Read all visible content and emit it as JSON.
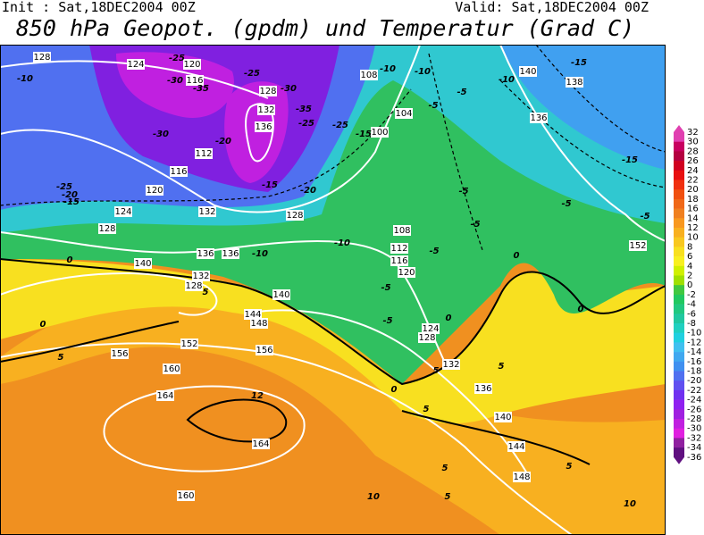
{
  "header": {
    "init": "Init : Sat,18DEC2004 00Z",
    "valid": "Valid: Sat,18DEC2004 00Z",
    "title": "850 hPa Geopot. (gpdm) und Temperatur (Grad C)"
  },
  "colorbar": {
    "levels": [
      32,
      30,
      28,
      26,
      24,
      22,
      20,
      18,
      16,
      14,
      12,
      10,
      8,
      6,
      4,
      2,
      0,
      -2,
      -4,
      -6,
      -8,
      -10,
      -12,
      -14,
      -16,
      -18,
      -20,
      -22,
      -24,
      -26,
      -28,
      -30,
      -32,
      -34,
      -36
    ],
    "colors": [
      "#e040b0",
      "#c80060",
      "#b40040",
      "#d00020",
      "#e81010",
      "#f03010",
      "#f05010",
      "#f06818",
      "#f08020",
      "#f89820",
      "#f8b020",
      "#f8c820",
      "#f8e020",
      "#f8f020",
      "#d0f000",
      "#a0e000",
      "#40c840",
      "#20c860",
      "#20c880",
      "#20c8a0",
      "#20d0c0",
      "#20d0e0",
      "#40c0f0",
      "#40a8f0",
      "#4090f0",
      "#5070f0",
      "#6050f0",
      "#7030f0",
      "#9020f0",
      "#a020e0",
      "#c020e0",
      "#e020e0",
      "#9020a0",
      "#601080"
    ]
  },
  "map": {
    "geopotential_labels": [
      128,
      124,
      120,
      116,
      128,
      132,
      136,
      112,
      116,
      120,
      124,
      128,
      132,
      128,
      136,
      136,
      140,
      132,
      128,
      140,
      144,
      148,
      152,
      156,
      156,
      160,
      164,
      164,
      160,
      108,
      104,
      100,
      108,
      112,
      116,
      120,
      124,
      128,
      132,
      136,
      140,
      144,
      148,
      140,
      138,
      136,
      152
    ],
    "temperature_labels": [
      -10,
      -25,
      -30,
      -35,
      -25,
      -30,
      -35,
      -25,
      -25,
      -30,
      -20,
      -15,
      -10,
      -10,
      -5,
      -5,
      -25,
      -20,
      -15,
      -15,
      -20,
      -5,
      -5,
      -10,
      -10,
      -5,
      0,
      -5,
      -5,
      0,
      0,
      0,
      5,
      0,
      5,
      12,
      5,
      5,
      5,
      0,
      5,
      5,
      10,
      5,
      10,
      -10,
      -15,
      -15,
      -5,
      -5
    ]
  }
}
